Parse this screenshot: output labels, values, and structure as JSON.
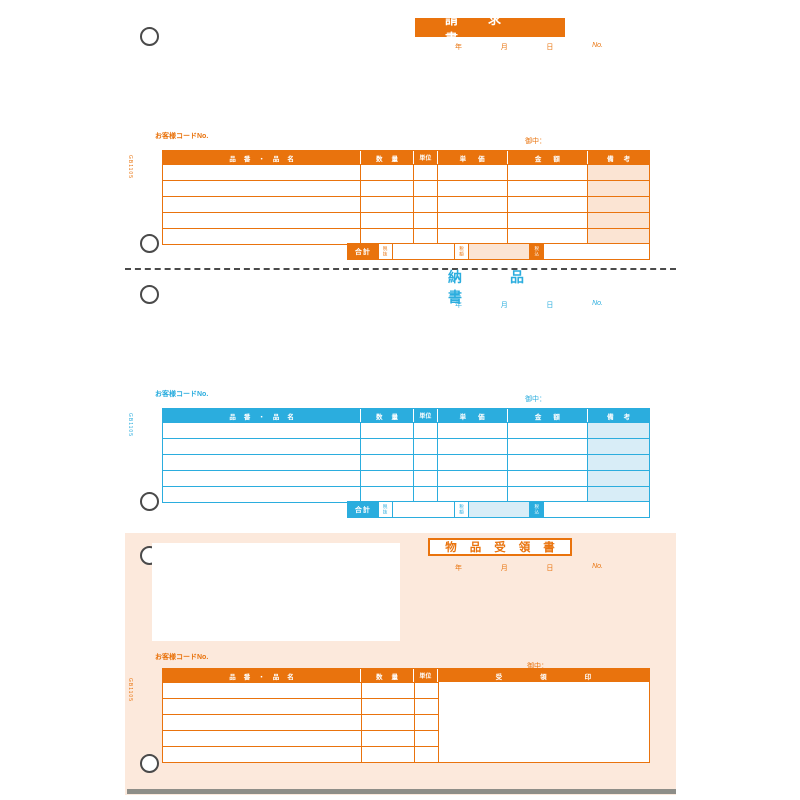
{
  "form": {
    "page_background": "#ffffff",
    "perforation_color": "#4a4a4a",
    "sections": [
      {
        "id": "invoice",
        "title": "請求書",
        "accent_color": "#e9730d",
        "remarks_shade_color": "#fbe4d3",
        "date_line": {
          "year": "年",
          "month": "月",
          "day": "日",
          "no": "No."
        },
        "customer_code_label": "お客様コードNo.",
        "addressee_label": "御中：",
        "side_code": "GB1105",
        "table": {
          "headers": [
            "品番・品名",
            "数量",
            "単位",
            "単価",
            "金額",
            "備考"
          ]
        },
        "totals": {
          "total_label": "合計",
          "tax_excluded_label": "税抜",
          "tax_amount_label": "税額",
          "tax_included_label": "税込"
        }
      },
      {
        "id": "delivery-note",
        "title": "納品書",
        "accent_color": "#2badde",
        "remarks_shade_color": "#d8edf7",
        "date_line": {
          "year": "年",
          "month": "月",
          "day": "日",
          "no": "No."
        },
        "customer_code_label": "お客様コードNo.",
        "addressee_label": "御中：",
        "side_code": "GB1105",
        "table": {
          "headers": [
            "品番・品名",
            "数量",
            "単位",
            "単価",
            "金額",
            "備考"
          ]
        },
        "totals": {
          "total_label": "合計",
          "tax_excluded_label": "税抜",
          "tax_amount_label": "税額",
          "tax_included_label": "税込"
        }
      },
      {
        "id": "goods-receipt",
        "title": "物品受領書",
        "accent_color": "#e9730d",
        "background_color": "#fce9dc",
        "date_line": {
          "year": "年",
          "month": "月",
          "day": "日",
          "no": "No."
        },
        "customer_code_label": "お客様コードNo.",
        "addressee_label": "御中：",
        "side_code": "GB1105",
        "table": {
          "headers": [
            "品番・品名",
            "数量",
            "単位",
            "受領印"
          ]
        }
      }
    ]
  }
}
